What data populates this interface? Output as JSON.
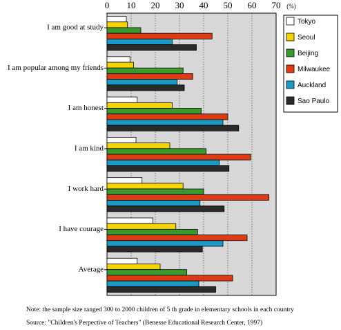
{
  "chart_data": {
    "type": "bar",
    "orientation": "horizontal",
    "unit": "(%)",
    "xlim": [
      0,
      70
    ],
    "x_ticks": [
      0,
      10,
      20,
      30,
      40,
      50,
      60,
      70
    ],
    "grid": "vertical dotted",
    "categories": [
      "I am good at study",
      "I am popular among my friends",
      "I am honest",
      "I am kind",
      "I work hard",
      "I have courage",
      "Average"
    ],
    "series": [
      {
        "name": "Tokyo",
        "color": "#ffffff",
        "values": [
          8,
          9.5,
          12.5,
          12,
          14.5,
          19,
          12.5
        ]
      },
      {
        "name": "Seoul",
        "color": "#f5d400",
        "values": [
          8.5,
          11,
          27,
          26,
          31.5,
          28.5,
          22
        ]
      },
      {
        "name": "Beijing",
        "color": "#3a9a2c",
        "values": [
          14,
          31.5,
          39,
          41,
          40,
          37.5,
          33
        ]
      },
      {
        "name": "Milwaukee",
        "color": "#e03a12",
        "values": [
          43.5,
          35.5,
          50,
          59.5,
          67,
          58,
          52
        ]
      },
      {
        "name": "Auckland",
        "color": "#1b9bc4",
        "values": [
          27,
          29,
          48,
          46.5,
          38.5,
          48,
          38
        ]
      },
      {
        "name": "Sao Paulo",
        "color": "#2a2a2a",
        "values": [
          37,
          32,
          54.5,
          50.5,
          48.5,
          39.5,
          45
        ]
      }
    ],
    "legend_position": "right"
  },
  "notes": {
    "note": "Note: the sample size ranged 300 to 2000 children of 5 th grade in elementary schools in each country",
    "source": "Source: \"Children's Perpective of Teachers\" (Benesse Educational Research Center, 1997)"
  }
}
